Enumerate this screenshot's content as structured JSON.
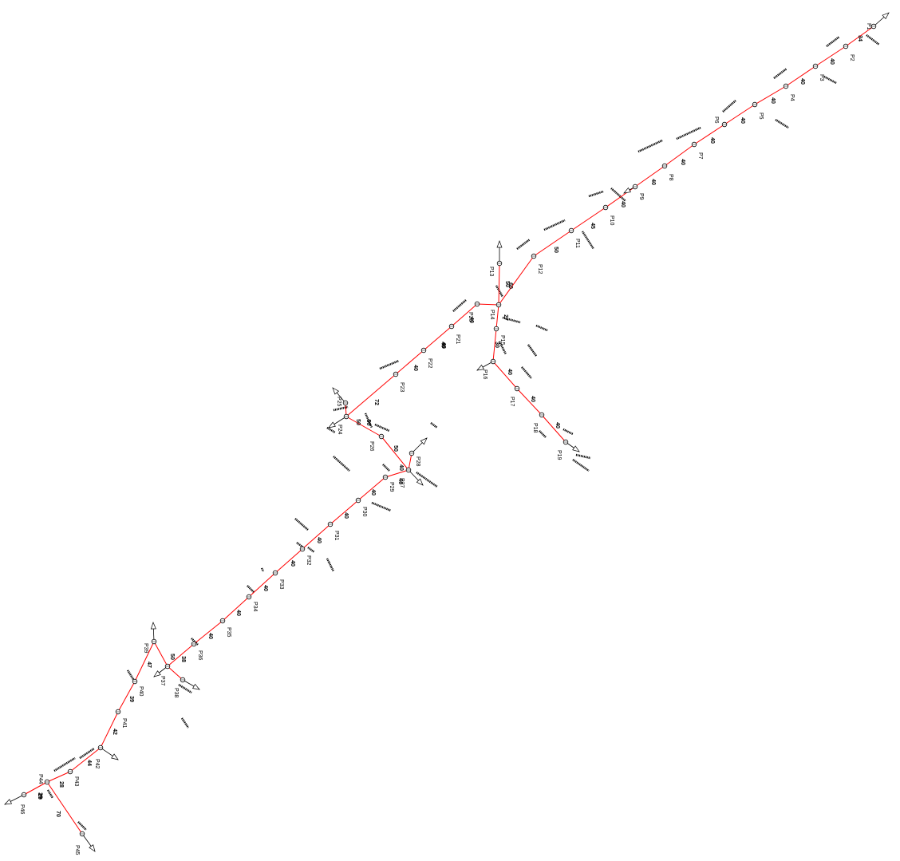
{
  "diagram": {
    "line_color": "#ff0000",
    "poles": [
      "P1",
      "P2",
      "P3",
      "P4",
      "P5",
      "P6",
      "P7",
      "P8",
      "P9",
      "P10",
      "P11",
      "P12",
      "P13",
      "P14",
      "P15",
      "P16",
      "P17",
      "P18",
      "P19",
      "P20",
      "P21",
      "P22",
      "P23",
      "P24",
      "P25",
      "P26",
      "P27",
      "P28",
      "P29",
      "P30",
      "P31",
      "P32",
      "P33",
      "P34",
      "P35",
      "P36",
      "P37",
      "P38",
      "P39",
      "P40",
      "P41",
      "P42",
      "P43",
      "P44",
      "P45",
      "P46"
    ],
    "spans": [
      {
        "from": "P1",
        "to": "P2",
        "length": "34"
      },
      {
        "from": "P2",
        "to": "P3",
        "length": "40"
      },
      {
        "from": "P3",
        "to": "P4",
        "length": "40"
      },
      {
        "from": "P4",
        "to": "P5",
        "length": "40"
      },
      {
        "from": "P5",
        "to": "P6",
        "length": "40"
      },
      {
        "from": "P6",
        "to": "P7",
        "length": "40"
      },
      {
        "from": "P7",
        "to": "P8",
        "length": "40"
      },
      {
        "from": "P8",
        "to": "P9",
        "length": "40"
      },
      {
        "from": "P9",
        "to": "P10",
        "length": "40"
      },
      {
        "from": "P10",
        "to": "P11",
        "length": "45"
      },
      {
        "from": "P11",
        "to": "P12",
        "length": "50"
      },
      {
        "from": "P12",
        "to": "P14",
        "length": "60"
      },
      {
        "from": "P13",
        "to": "P14",
        "length": "50"
      },
      {
        "from": "P14",
        "to": "P15",
        "length": "27"
      },
      {
        "from": "P15",
        "to": "P16",
        "length": "30"
      },
      {
        "from": "P16",
        "to": "P17",
        "length": "40"
      },
      {
        "from": "P17",
        "to": "P18",
        "length": "40"
      },
      {
        "from": "P18",
        "to": "P19",
        "length": "40"
      },
      {
        "from": "P14",
        "to": "P20",
        "length": "40"
      },
      {
        "from": "P20",
        "to": "P21",
        "length": "40"
      },
      {
        "from": "P21",
        "to": "P22",
        "length": "40"
      },
      {
        "from": "P22",
        "to": "P23",
        "length": "40"
      },
      {
        "from": "P23",
        "to": "P24",
        "length": "72"
      },
      {
        "from": "P24",
        "to": "P25",
        "length": "50"
      },
      {
        "from": "P24",
        "to": "P26",
        "length": "50"
      },
      {
        "from": "P26",
        "to": "P27",
        "length": "50"
      },
      {
        "from": "P27",
        "to": "P28",
        "length": "40"
      },
      {
        "from": "P27",
        "to": "P29",
        "length": "40"
      },
      {
        "from": "P29",
        "to": "P30",
        "length": "40"
      },
      {
        "from": "P30",
        "to": "P31",
        "length": "40"
      },
      {
        "from": "P31",
        "to": "P32",
        "length": "40"
      },
      {
        "from": "P32",
        "to": "P33",
        "length": "40"
      },
      {
        "from": "P33",
        "to": "P34",
        "length": "40"
      },
      {
        "from": "P34",
        "to": "P35",
        "length": "40"
      },
      {
        "from": "P35",
        "to": "P36",
        "length": "40"
      },
      {
        "from": "P36",
        "to": "P37",
        "length": "38"
      },
      {
        "from": "P37",
        "to": "P38",
        "length": "50"
      },
      {
        "from": "P37",
        "to": "P39",
        "length": "47"
      },
      {
        "from": "P39",
        "to": "P40",
        "length": "39"
      },
      {
        "from": "P40",
        "to": "P41",
        "length": "42"
      },
      {
        "from": "P41",
        "to": "P42",
        "length": "44"
      },
      {
        "from": "P42",
        "to": "P43",
        "length": "28"
      },
      {
        "from": "P43",
        "to": "P44",
        "length": "29"
      },
      {
        "from": "P44",
        "to": "P45",
        "length": "70"
      },
      {
        "from": "P44",
        "to": "P46",
        "length": "29"
      }
    ]
  }
}
